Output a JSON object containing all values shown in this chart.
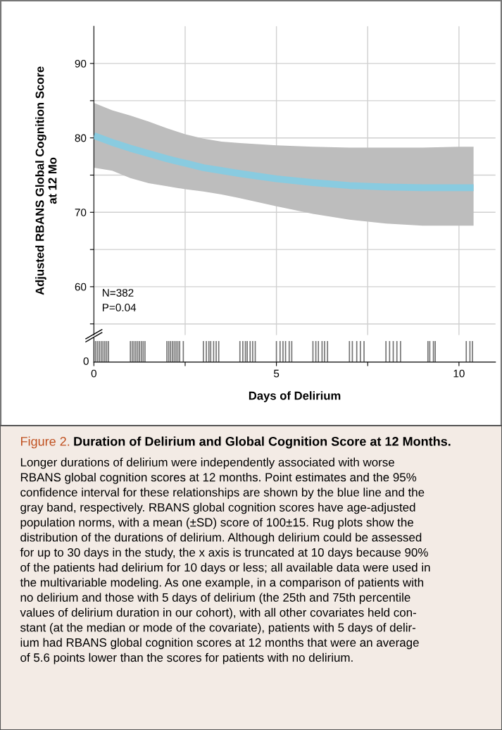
{
  "chart_data": {
    "type": "line",
    "ylabel": "Adjusted RBANS Global Cognition Score\nat 12 Mo",
    "xlabel": "Days of Delirium",
    "title": "Duration of Delirium and Global Cognition Score at 12 Months.",
    "annotations": [
      "Figure 2.",
      "N=382\nP=0.04",
      "Longer durations of delirium were independently associated with worse\nRBANS global cognition scores at 12 months. Point estimates and the 95%\nconfidence interval for these relationships are shown by the blue line and the\ngray band, respectively. RBANS global cognition scores have age-adjusted\npopulation norms, with a mean (±SD) score of 100±15. Rug plots show the\ndistribution of the durations of delirium. Although delirium could be assessed\nfor up to 30 days in the study, the x axis is truncated at 10 days because 90%\nof the patients had delirium for 10 days or less; all available data were used in\nthe multivariable modeling. As one example, in a comparison of patients with\nno delirium and those with 5 days of delirium (the 25th and 75th percentile\nvalues of delirium duration in our cohort), with all other covariates held con-\nstant (at the median or mode of the covariate), patients with 5 days of delir-\nium had RBANS global cognition scores at 12 months that were an average\nof 5.6 points lower than the scores for patients with no delirium.",
      "0"
    ],
    "series": [
      {
        "color": "#89cbe0",
        "x": [
          0,
          0.5,
          1,
          1.5,
          2,
          2.5,
          3,
          3.5,
          4,
          5,
          6,
          7,
          8,
          9,
          10,
          10.4
        ],
        "values": [
          80.3,
          79.4,
          78.6,
          77.9,
          77.2,
          76.6,
          76.0,
          75.6,
          75.2,
          74.5,
          74.0,
          73.6,
          73.4,
          73.3,
          73.3,
          73.3
        ],
        "lower": [
          76.0,
          75.6,
          74.6,
          73.9,
          73.5,
          73.1,
          72.8,
          72.4,
          71.9,
          70.8,
          69.8,
          69.0,
          68.5,
          68.2,
          68.2,
          68.2
        ],
        "upper": [
          84.7,
          83.7,
          83.0,
          82.2,
          81.3,
          80.5,
          79.9,
          79.5,
          79.3,
          79.0,
          78.8,
          78.7,
          78.7,
          78.7,
          78.8,
          78.8
        ]
      }
    ],
    "xlim": [
      0,
      11
    ],
    "xticks": [
      0,
      {
        "value": 2.5,
        "label": null
      },
      5,
      {
        "value": 7.5,
        "label": null
      },
      10
    ],
    "ylim": [
      53.5,
      95
    ],
    "yticks": [
      {
        "value": 55,
        "label": null
      },
      60,
      {
        "value": 65,
        "label": null
      },
      70,
      {
        "value": 75,
        "label": null
      },
      80,
      {
        "value": 85,
        "label": null
      },
      90
    ],
    "grid": true
  }
}
